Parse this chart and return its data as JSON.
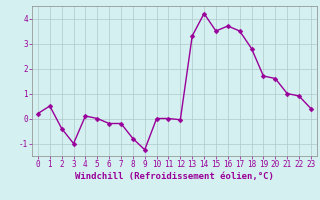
{
  "x": [
    0,
    1,
    2,
    3,
    4,
    5,
    6,
    7,
    8,
    9,
    10,
    11,
    12,
    13,
    14,
    15,
    16,
    17,
    18,
    19,
    20,
    21,
    22,
    23
  ],
  "y": [
    0.2,
    0.5,
    -0.4,
    -1.0,
    0.1,
    0.0,
    -0.2,
    -0.2,
    -0.8,
    -1.25,
    0.0,
    0.0,
    -0.05,
    3.3,
    4.2,
    3.5,
    3.7,
    3.5,
    2.8,
    1.7,
    1.6,
    1.0,
    0.9,
    0.4
  ],
  "line_color": "#990099",
  "marker_color": "#990099",
  "bg_color": "#d5f0f0",
  "grid_color": "#b0c8c8",
  "axis_color": "#888888",
  "xlabel": "Windchill (Refroidissement éolien,°C)",
  "ylim": [
    -1.5,
    4.5
  ],
  "xlim": [
    -0.5,
    23.5
  ],
  "yticks": [
    -1,
    0,
    1,
    2,
    3,
    4
  ],
  "xticks": [
    0,
    1,
    2,
    3,
    4,
    5,
    6,
    7,
    8,
    9,
    10,
    11,
    12,
    13,
    14,
    15,
    16,
    17,
    18,
    19,
    20,
    21,
    22,
    23
  ],
  "font_color": "#990099",
  "tick_fontsize": 5.5,
  "xlabel_fontsize": 6.5,
  "linewidth": 1.0,
  "markersize": 2.5
}
